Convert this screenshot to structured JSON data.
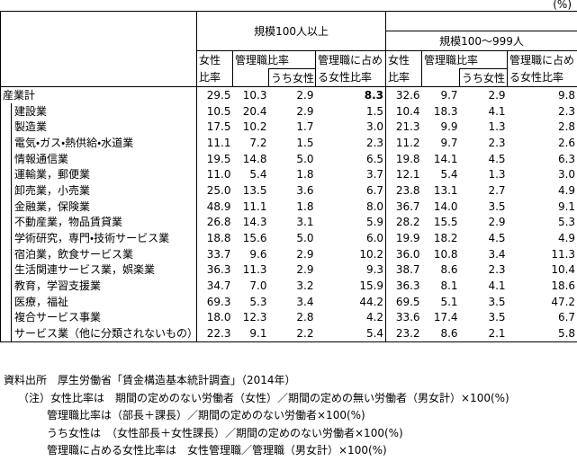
{
  "unit": "(%)",
  "header": {
    "group_1": "規模100人以上",
    "group_2": "規模100～999人",
    "columns": [
      [
        "女性",
        "比率"
      ],
      [
        "管理職比率"
      ],
      [
        "うち女性"
      ],
      [
        "管理職に占め",
        "る女性比率"
      ]
    ]
  },
  "table": {
    "rows": [
      {
        "label": "産業計",
        "cells": [
          "29.5",
          "10.3",
          "2.9",
          "8.3",
          "32.6",
          "9.7",
          "2.9",
          "9.8"
        ]
      },
      {
        "label": "建設業",
        "cells": [
          "10.5",
          "20.4",
          "2.9",
          "1.5",
          "10.4",
          "18.3",
          "4.1",
          "2.3"
        ]
      },
      {
        "label": "製造業",
        "cells": [
          "17.5",
          "10.2",
          "1.7",
          "3.0",
          "21.3",
          "9.9",
          "1.3",
          "2.8"
        ]
      },
      {
        "label": "電気・ガス・熱供給・水道業",
        "cells": [
          "11.1",
          "7.2",
          "1.5",
          "2.3",
          "11.2",
          "9.7",
          "2.3",
          "2.6"
        ]
      },
      {
        "label": "情報通信業",
        "cells": [
          "19.5",
          "14.8",
          "5.0",
          "6.5",
          "19.8",
          "14.1",
          "4.5",
          "6.3"
        ]
      },
      {
        "label": "運輸業，郵便業",
        "cells": [
          "11.0",
          "5.4",
          "1.8",
          "3.7",
          "12.1",
          "5.4",
          "1.3",
          "3.0"
        ]
      },
      {
        "label": "卸売業，小売業",
        "cells": [
          "25.0",
          "13.5",
          "3.6",
          "6.7",
          "23.8",
          "13.1",
          "2.7",
          "4.9"
        ]
      },
      {
        "label": "金融業，保険業",
        "cells": [
          "48.9",
          "11.1",
          "1.8",
          "8.0",
          "36.7",
          "14.0",
          "3.5",
          "9.1"
        ]
      },
      {
        "label": "不動産業，物品賃貸業",
        "cells": [
          "26.8",
          "14.3",
          "3.1",
          "5.9",
          "28.2",
          "15.5",
          "2.9",
          "5.3"
        ]
      },
      {
        "label": "学術研究，専門・技術サービス業",
        "cells": [
          "18.8",
          "15.6",
          "5.0",
          "6.0",
          "19.9",
          "18.2",
          "4.5",
          "4.9"
        ]
      },
      {
        "label": "宿泊業，飲食サービス業",
        "cells": [
          "33.7",
          "9.6",
          "2.9",
          "10.2",
          "36.0",
          "10.8",
          "3.4",
          "11.3"
        ]
      },
      {
        "label": "生活関連サービス業，娯楽業",
        "cells": [
          "36.3",
          "11.3",
          "2.9",
          "9.3",
          "38.7",
          "8.6",
          "2.3",
          "10.4"
        ]
      },
      {
        "label": "教育，学習支援業",
        "cells": [
          "34.7",
          "7.0",
          "3.2",
          "15.9",
          "36.3",
          "8.1",
          "4.1",
          "18.6"
        ]
      },
      {
        "label": "医療，福祉",
        "cells": [
          "69.3",
          "5.3",
          "3.4",
          "44.2",
          "69.5",
          "5.1",
          "3.5",
          "47.2"
        ]
      },
      {
        "label": "複合サービス事業",
        "cells": [
          "18.0",
          "12.3",
          "2.8",
          "4.2",
          "33.6",
          "17.4",
          "3.5",
          "6.7"
        ]
      },
      {
        "label": "サービス業（他に分類されないもの）",
        "cells": [
          "22.3",
          "9.1",
          "2.2",
          "5.4",
          "23.2",
          "8.6",
          "2.1",
          "5.8"
        ]
      }
    ]
  },
  "notes": {
    "source": "資料出所　厚生労働省「賃金構造基本統計調査」（2014年）",
    "lines": [
      "（注）女性比率は　期間の定めのない労働者（女性）／期間の定めの無い労働者（男女計）×100(%)",
      "管理職比率は（部長＋課長）／期間の定めのない労働者×100(%)",
      "うち女性は　（女性部長＋女性課長）／期間の定めのない労働者×100(%)",
      "管理職に占める女性比率は　女性管理職／管理職（男女計）×100(%)"
    ]
  }
}
